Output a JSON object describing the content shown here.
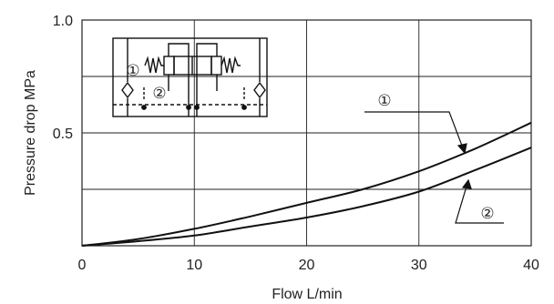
{
  "chart_data": {
    "type": "line",
    "xlabel": "Flow  L/min",
    "ylabel": "Pressure drop  MPa",
    "xlim": [
      0,
      40
    ],
    "ylim": [
      0,
      1.0
    ],
    "x_ticks": [
      0,
      10,
      20,
      30,
      40
    ],
    "x_tick_labels": [
      "0",
      "10",
      "20",
      "30",
      "40"
    ],
    "y_ticks": [
      0,
      0.5,
      1.0
    ],
    "y_tick_labels": [
      "",
      "0.5",
      "1.0"
    ],
    "grid": true,
    "series": [
      {
        "name": "①",
        "x": [
          0,
          5,
          10,
          15,
          20,
          25,
          30,
          35,
          40
        ],
        "values": [
          0.0,
          0.03,
          0.075,
          0.13,
          0.19,
          0.25,
          0.33,
          0.43,
          0.545
        ],
        "color": "#111111"
      },
      {
        "name": "②",
        "x": [
          0,
          5,
          10,
          15,
          20,
          25,
          30,
          35,
          40
        ],
        "values": [
          0.0,
          0.02,
          0.045,
          0.085,
          0.125,
          0.175,
          0.24,
          0.335,
          0.435
        ],
        "color": "#111111"
      }
    ],
    "annotations": [
      "①",
      "②"
    ]
  },
  "inset_diagram": {
    "icon": "hydraulic-circuit-symbol",
    "labels": [
      "①",
      "②"
    ]
  },
  "colors": {
    "line": "#111111",
    "grid": "#222222",
    "background": "#ffffff"
  }
}
